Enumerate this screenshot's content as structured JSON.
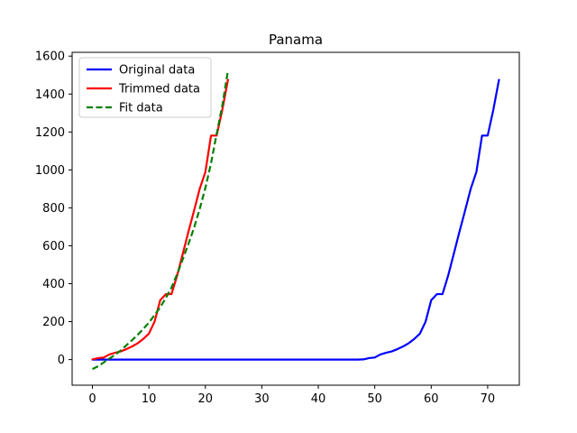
{
  "chart_data": {
    "type": "line",
    "title": "Panama",
    "xlabel": "",
    "ylabel": "",
    "xlim": [
      -3.6,
      75.6
    ],
    "ylim": [
      -135,
      1620
    ],
    "x_ticks": [
      0,
      10,
      20,
      30,
      40,
      50,
      60,
      70
    ],
    "y_ticks": [
      0,
      200,
      400,
      600,
      800,
      1000,
      1200,
      1400,
      1600
    ],
    "grid": false,
    "legend_position": "top-left",
    "series": [
      {
        "name": "Original data",
        "color": "#0000ff",
        "style": "solid",
        "x": [
          0,
          1,
          2,
          3,
          4,
          5,
          6,
          7,
          8,
          9,
          10,
          11,
          12,
          13,
          14,
          15,
          16,
          17,
          18,
          19,
          20,
          21,
          22,
          23,
          24,
          25,
          26,
          27,
          28,
          29,
          30,
          31,
          32,
          33,
          34,
          35,
          36,
          37,
          38,
          39,
          40,
          41,
          42,
          43,
          44,
          45,
          46,
          47,
          48,
          49,
          50,
          51,
          52,
          53,
          54,
          55,
          56,
          57,
          58,
          59,
          60,
          61,
          62,
          63,
          64,
          65,
          66,
          67,
          68,
          69,
          70,
          71,
          72
        ],
        "y": [
          0,
          0,
          0,
          0,
          0,
          0,
          0,
          0,
          0,
          0,
          0,
          0,
          0,
          0,
          0,
          0,
          0,
          0,
          0,
          0,
          0,
          0,
          0,
          0,
          0,
          0,
          0,
          0,
          0,
          0,
          0,
          0,
          0,
          0,
          0,
          0,
          0,
          0,
          0,
          0,
          0,
          0,
          0,
          0,
          0,
          0,
          0,
          0,
          1,
          8,
          11,
          27,
          36,
          43,
          55,
          69,
          86,
          109,
          137,
          200,
          313,
          345,
          345,
          443,
          558,
          674,
          786,
          901,
          989,
          1181,
          1181,
          1317,
          1475
        ]
      },
      {
        "name": "Trimmed data",
        "color": "#ff0000",
        "style": "solid",
        "x": [
          0,
          1,
          2,
          3,
          4,
          5,
          6,
          7,
          8,
          9,
          10,
          11,
          12,
          13,
          14,
          15,
          16,
          17,
          18,
          19,
          20,
          21,
          22,
          23,
          24
        ],
        "y": [
          1,
          8,
          11,
          27,
          36,
          43,
          55,
          69,
          86,
          109,
          137,
          200,
          313,
          345,
          345,
          443,
          558,
          674,
          786,
          901,
          989,
          1181,
          1181,
          1317,
          1475
        ]
      },
      {
        "name": "Fit data",
        "color": "#008000",
        "style": "dashed",
        "x": [
          0,
          1,
          2,
          3,
          4,
          5,
          6,
          7,
          8,
          9,
          10,
          11,
          12,
          13,
          14,
          15,
          16,
          17,
          18,
          19,
          20,
          21,
          22,
          23,
          24
        ],
        "y": [
          -50,
          -35,
          -15,
          5,
          25,
          48,
          75,
          102,
          130,
          162,
          195,
          235,
          275,
          325,
          380,
          450,
          530,
          610,
          695,
          795,
          905,
          1035,
          1190,
          1340,
          1525
        ]
      }
    ]
  }
}
